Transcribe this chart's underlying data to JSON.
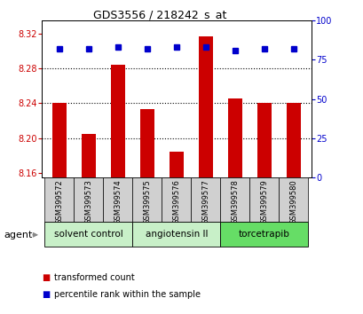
{
  "title": "GDS3556 / 218242_s_at",
  "samples": [
    "GSM399572",
    "GSM399573",
    "GSM399574",
    "GSM399575",
    "GSM399576",
    "GSM399577",
    "GSM399578",
    "GSM399579",
    "GSM399580"
  ],
  "red_values": [
    8.24,
    8.205,
    8.284,
    8.233,
    8.185,
    8.317,
    8.246,
    8.24,
    8.24
  ],
  "blue_values": [
    82,
    82,
    83,
    82,
    83,
    83,
    81,
    82,
    82
  ],
  "ylim_left": [
    8.155,
    8.335
  ],
  "ylim_right": [
    0,
    100
  ],
  "yticks_left": [
    8.16,
    8.2,
    8.24,
    8.28,
    8.32
  ],
  "yticks_right": [
    0,
    25,
    50,
    75,
    100
  ],
  "bar_color": "#cc0000",
  "dot_color": "#0000cc",
  "baseline": 8.155,
  "bar_width": 0.5,
  "legend_red_label": "transformed count",
  "legend_blue_label": "percentile rank within the sample",
  "agent_label": "agent",
  "background_plot": "#ffffff",
  "background_samples": "#d0d0d0",
  "background_agent_1": "#c8f0c8",
  "background_agent_2": "#66dd66",
  "groups": [
    {
      "label": "solvent control",
      "start": 0,
      "end": 2,
      "color": "#c8f0c8"
    },
    {
      "label": "angiotensin II",
      "start": 3,
      "end": 5,
      "color": "#c8f0c8"
    },
    {
      "label": "torcetrapib",
      "start": 6,
      "end": 8,
      "color": "#66dd66"
    }
  ]
}
